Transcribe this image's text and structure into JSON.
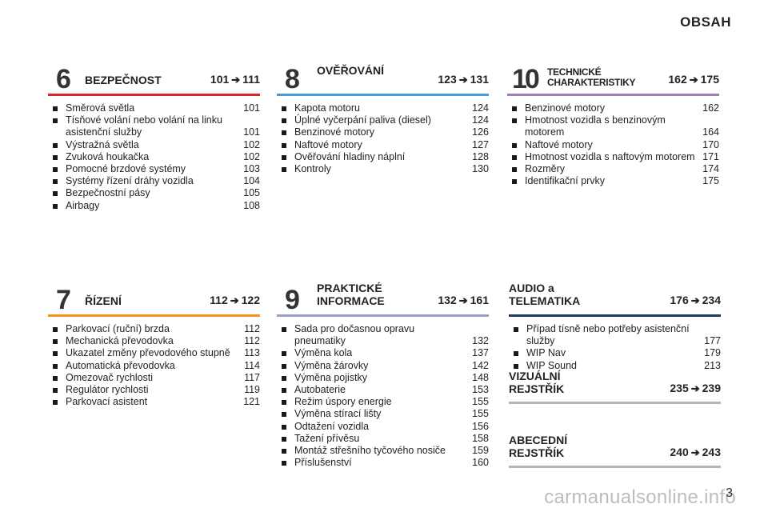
{
  "page_title": "OBSAH",
  "page_number": "3",
  "watermark": "carmanualsonline.info",
  "arrow_icon": "➔",
  "sections": {
    "s6": {
      "number": "6",
      "title": "BEZPEČNOST",
      "range_start": "101",
      "range_end": "111",
      "rule_color": "#d9262c",
      "items": [
        {
          "text": "Směrová světla",
          "page": "101"
        },
        {
          "text": "Tísňové volání nebo volání na linku asistenční služby",
          "page": "101"
        },
        {
          "text": "Výstražná světla",
          "page": "102"
        },
        {
          "text": "Zvuková houkačka",
          "page": "102"
        },
        {
          "text": "Pomocné brzdové systémy",
          "page": "103"
        },
        {
          "text": "Systémy řízení dráhy vozidla",
          "page": "104"
        },
        {
          "text": "Bezpečnostní pásy",
          "page": "105"
        },
        {
          "text": "Airbagy",
          "page": "108"
        }
      ]
    },
    "s8": {
      "number": "8",
      "title": "OVĚŘOVÁNÍ",
      "range_start": "123",
      "range_end": "131",
      "rule_color": "#4a9ad4",
      "items": [
        {
          "text": "Kapota motoru",
          "page": "124"
        },
        {
          "text": "Úplné vyčerpání paliva (diesel)",
          "page": "124"
        },
        {
          "text": "Benzinové motory",
          "page": "126"
        },
        {
          "text": "Naftové motory",
          "page": "127"
        },
        {
          "text": "Ověřování hladiny náplní",
          "page": "128"
        },
        {
          "text": "Kontroly",
          "page": "130"
        }
      ]
    },
    "s10": {
      "number": "10",
      "title_line1": "TECHNICKÉ",
      "title_line2": "CHARAKTERISTIKY",
      "range_start": "162",
      "range_end": "175",
      "rule_color": "#a27bb5",
      "items": [
        {
          "text": "Benzinové motory",
          "page": "162"
        },
        {
          "text": "Hmotnost vozidla s benzinovým motorem",
          "page": "164"
        },
        {
          "text": "Naftové motory",
          "page": "170"
        },
        {
          "text": "Hmotnost vozidla s naftovým motorem",
          "page": "171"
        },
        {
          "text": "Rozměry",
          "page": "174"
        },
        {
          "text": "Identifikační prvky",
          "page": "175"
        }
      ]
    },
    "s7": {
      "number": "7",
      "title": "ŘÍZENÍ",
      "range_start": "112",
      "range_end": "122",
      "rule_color": "#f2921f",
      "items": [
        {
          "text": "Parkovací (ruční) brzda",
          "page": "112"
        },
        {
          "text": "Mechanická převodovka",
          "page": "112"
        },
        {
          "text": "Ukazatel změny převodového stupně",
          "page": "113"
        },
        {
          "text": "Automatická převodovka",
          "page": "114"
        },
        {
          "text": "Omezovač rychlosti",
          "page": "117"
        },
        {
          "text": "Regulátor rychlosti",
          "page": "119"
        },
        {
          "text": "Parkovací asistent",
          "page": "121"
        }
      ]
    },
    "s9": {
      "number": "9",
      "title_line1": "PRAKTICKÉ",
      "title_line2": "INFORMACE",
      "range_start": "132",
      "range_end": "161",
      "rule_color": "#9a9fc7",
      "items": [
        {
          "text": "Sada pro dočasnou opravu pneumatiky",
          "page": "132"
        },
        {
          "text": "Výměna kola",
          "page": "137"
        },
        {
          "text": "Výměna žárovky",
          "page": "142"
        },
        {
          "text": "Výměna pojistky",
          "page": "148"
        },
        {
          "text": "Autobaterie",
          "page": "153"
        },
        {
          "text": "Režim úspory energie",
          "page": "155"
        },
        {
          "text": "Výměna stírací lišty",
          "page": "155"
        },
        {
          "text": "Odtažení vozidla",
          "page": "156"
        },
        {
          "text": "Tažení přívěsu",
          "page": "158"
        },
        {
          "text": "Montáž střešního tyčového nosiče",
          "page": "159"
        },
        {
          "text": "Příslušenství",
          "page": "160"
        }
      ]
    },
    "audio": {
      "title_line1": "AUDIO a",
      "title_line2": "TELEMATIKA",
      "range_start": "176",
      "range_end": "234",
      "rule_color": "#1f3a66",
      "items": [
        {
          "text": "Případ tísně nebo potřeby asistenční služby",
          "page": "177"
        },
        {
          "text": "WIP Nav",
          "page": "179"
        },
        {
          "text": "WIP Sound",
          "page": "213"
        }
      ]
    },
    "visual": {
      "title_line1": "VIZUÁLNÍ",
      "title_line2": "REJSTŘÍK",
      "range_start": "235",
      "range_end": "239"
    },
    "alpha": {
      "title_line1": "ABECEDNÍ",
      "title_line2": "REJSTŘÍK",
      "range_start": "240",
      "range_end": "243"
    }
  }
}
